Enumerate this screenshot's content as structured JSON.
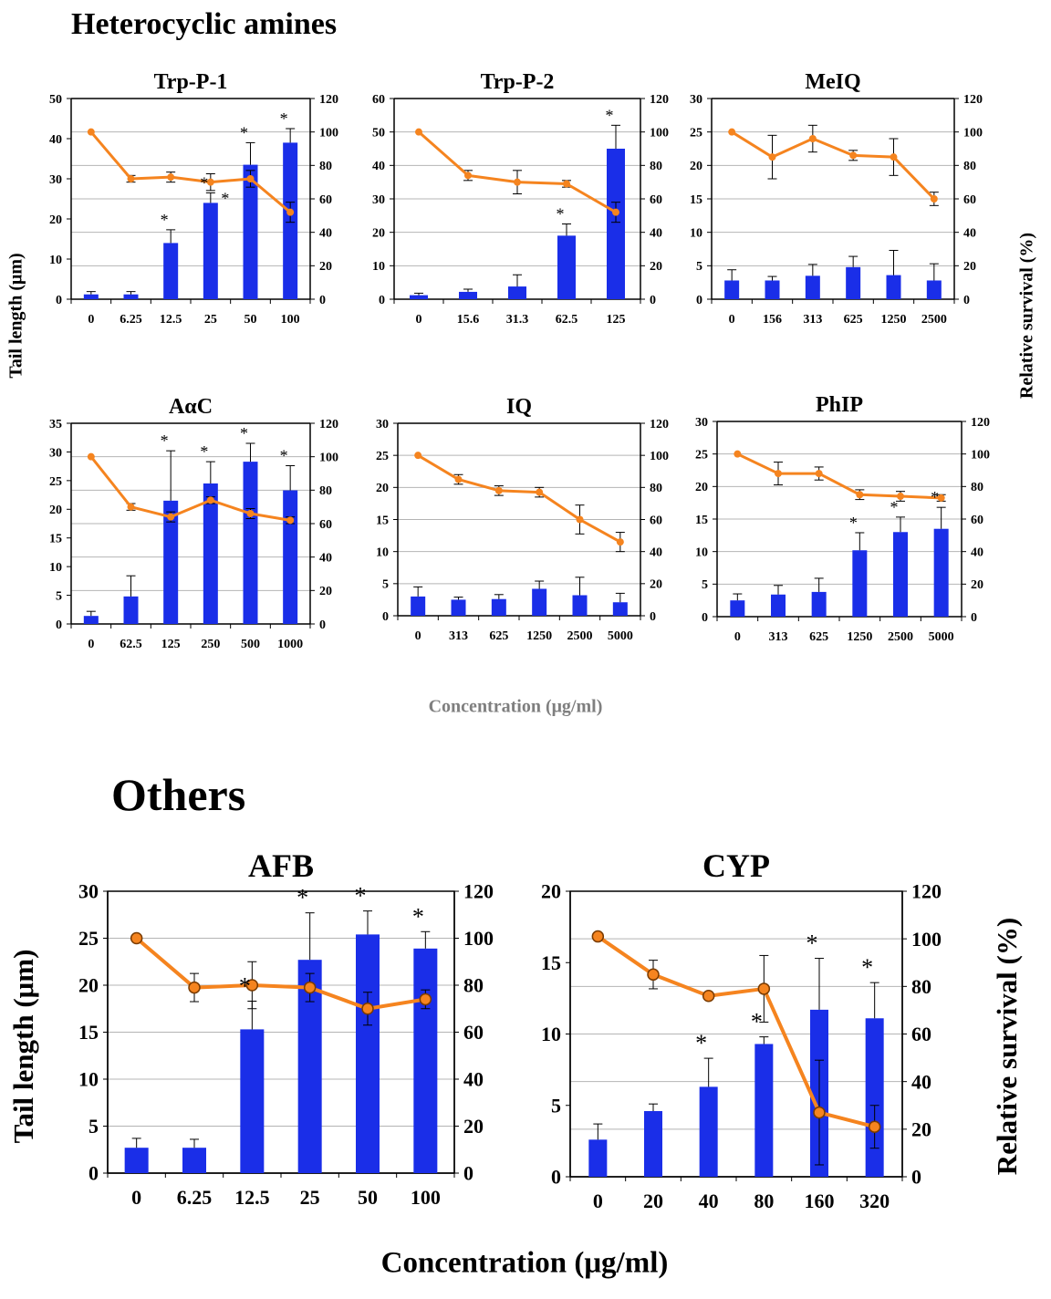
{
  "sections": {
    "heterocyclic": "Heterocyclic amines",
    "others": "Others"
  },
  "axis_labels": {
    "top_ylabel_left": "Tail length (μm)",
    "top_ylabel_right": "Relative survival (%)",
    "top_xlabel": "Concentration (μg/ml)",
    "bottom_ylabel_left": "Tail length (μm)",
    "bottom_ylabel_right": "Relative survival (%)",
    "bottom_xlabel": "Concentration (μg/ml)"
  },
  "colors": {
    "bar": "#1a2ee8",
    "line": "#f5841f",
    "grid": "#b4b4b4",
    "marker_edge_bottom": "#7a3b00"
  },
  "chart_data": [
    {
      "type": "bar+line",
      "title": "Trp-P-1",
      "categories": [
        "0",
        "6.25",
        "12.5",
        "25",
        "50",
        "100"
      ],
      "bars": {
        "name": "Tail length (μm)",
        "values": [
          1.2,
          1.2,
          14,
          24,
          33.5,
          39
        ],
        "errors": [
          0.7,
          0.7,
          3.3,
          2.5,
          5.5,
          3.5
        ],
        "ylim": [
          0,
          50
        ],
        "ticks": [
          0,
          10,
          20,
          30,
          40,
          50
        ]
      },
      "line": {
        "name": "Relative survival (%)",
        "values": [
          100,
          72,
          73,
          70,
          72,
          52
        ],
        "errors": [
          0,
          2,
          3,
          5,
          5,
          6
        ],
        "ylim": [
          0,
          120
        ],
        "ticks": [
          0,
          20,
          40,
          60,
          80,
          100,
          120
        ]
      },
      "significance": [
        "",
        "",
        "*",
        "*",
        "*",
        "*"
      ],
      "significance_line": [
        "",
        "",
        "",
        "*",
        "",
        ""
      ]
    },
    {
      "type": "bar+line",
      "title": "Trp-P-2",
      "categories": [
        "0",
        "15.6",
        "31.3",
        "62.5",
        "125"
      ],
      "bars": {
        "name": "Tail length (μm)",
        "values": [
          1.2,
          2.2,
          3.8,
          19,
          45
        ],
        "errors": [
          0.6,
          0.8,
          3.5,
          3.5,
          7
        ],
        "ylim": [
          0,
          60
        ],
        "ticks": [
          0,
          10,
          20,
          30,
          40,
          50,
          60
        ]
      },
      "line": {
        "name": "Relative survival (%)",
        "values": [
          100,
          74,
          70,
          69,
          52
        ],
        "errors": [
          0,
          3,
          7,
          2,
          6
        ],
        "ylim": [
          0,
          120
        ],
        "ticks": [
          0,
          20,
          40,
          60,
          80,
          100,
          120
        ]
      },
      "significance": [
        "",
        "",
        "",
        "*",
        "*"
      ],
      "significance_line": [
        "",
        "",
        "",
        "",
        ""
      ]
    },
    {
      "type": "bar+line",
      "title": "MeIQ",
      "categories": [
        "0",
        "156",
        "313",
        "625",
        "1250",
        "2500"
      ],
      "bars": {
        "name": "Tail length (μm)",
        "values": [
          2.8,
          2.8,
          3.5,
          4.8,
          3.6,
          2.8
        ],
        "errors": [
          1.6,
          0.6,
          1.7,
          1.6,
          3.7,
          2.5
        ],
        "ylim": [
          0,
          30
        ],
        "ticks": [
          0,
          5,
          10,
          15,
          20,
          25,
          30
        ]
      },
      "line": {
        "name": "Relative survival (%)",
        "values": [
          100,
          85,
          96,
          86,
          85,
          60
        ],
        "errors": [
          0,
          13,
          8,
          3,
          11,
          4
        ],
        "ylim": [
          0,
          120
        ],
        "ticks": [
          0,
          20,
          40,
          60,
          80,
          100,
          120
        ]
      },
      "significance": [
        "",
        "",
        "",
        "",
        "",
        ""
      ],
      "significance_line": [
        "",
        "",
        "",
        "",
        "",
        ""
      ]
    },
    {
      "type": "bar+line",
      "title": "AαC",
      "categories": [
        "0",
        "62.5",
        "125",
        "250",
        "500",
        "1000"
      ],
      "bars": {
        "name": "Tail length (μm)",
        "values": [
          1.4,
          4.8,
          21.5,
          24.5,
          28.3,
          23.3
        ],
        "errors": [
          0.8,
          3.6,
          8.7,
          3.8,
          3.2,
          4.3
        ],
        "ylim": [
          0,
          35
        ],
        "ticks": [
          0,
          5,
          10,
          15,
          20,
          25,
          30,
          35
        ]
      },
      "line": {
        "name": "Relative survival (%)",
        "values": [
          100,
          70,
          64,
          74,
          66,
          62
        ],
        "errors": [
          0,
          2,
          3,
          2,
          3,
          2
        ],
        "ylim": [
          0,
          120
        ],
        "ticks": [
          0,
          20,
          40,
          60,
          80,
          100,
          120
        ]
      },
      "significance": [
        "",
        "",
        "*",
        "*",
        "*",
        "*"
      ],
      "significance_line": [
        "",
        "",
        "",
        "",
        "",
        ""
      ]
    },
    {
      "type": "bar+line",
      "title": "IQ",
      "categories": [
        "0",
        "313",
        "625",
        "1250",
        "2500",
        "5000"
      ],
      "bars": {
        "name": "Tail length (μm)",
        "values": [
          3,
          2.5,
          2.6,
          4.2,
          3.2,
          2.1
        ],
        "errors": [
          1.5,
          0.4,
          0.7,
          1.2,
          2.8,
          1.4
        ],
        "ylim": [
          0,
          30
        ],
        "ticks": [
          0,
          5,
          10,
          15,
          20,
          25,
          30
        ]
      },
      "line": {
        "name": "Relative survival (%)",
        "values": [
          100,
          85,
          78,
          77,
          60,
          46
        ],
        "errors": [
          0,
          3,
          3,
          3,
          9,
          6
        ],
        "ylim": [
          0,
          120
        ],
        "ticks": [
          0,
          20,
          40,
          60,
          80,
          100,
          120
        ]
      },
      "significance": [
        "",
        "",
        "",
        "",
        "",
        ""
      ],
      "significance_line": [
        "",
        "",
        "",
        "",
        "",
        ""
      ]
    },
    {
      "type": "bar+line",
      "title": "PhIP",
      "categories": [
        "0",
        "313",
        "625",
        "1250",
        "2500",
        "5000"
      ],
      "bars": {
        "name": "Tail length (μm)",
        "values": [
          2.5,
          3.4,
          3.8,
          10.2,
          13,
          13.5
        ],
        "errors": [
          1,
          1.4,
          2.1,
          2.7,
          2.3,
          3.3
        ],
        "ylim": [
          0,
          30
        ],
        "ticks": [
          0,
          5,
          10,
          15,
          20,
          25,
          30
        ]
      },
      "line": {
        "name": "Relative survival (%)",
        "values": [
          100,
          88,
          88,
          75,
          74,
          73
        ],
        "errors": [
          0,
          7,
          4,
          3,
          3,
          2
        ],
        "ylim": [
          0,
          120
        ],
        "ticks": [
          0,
          20,
          40,
          60,
          80,
          100,
          120
        ]
      },
      "significance": [
        "",
        "",
        "",
        "*",
        "*",
        "*"
      ],
      "significance_line": [
        "",
        "",
        "",
        "",
        "",
        ""
      ]
    },
    {
      "type": "bar+line",
      "title": "AFB",
      "categories": [
        "0",
        "6.25",
        "12.5",
        "25",
        "50",
        "100"
      ],
      "bars": {
        "name": "Tail length (μm)",
        "values": [
          2.7,
          2.7,
          15.3,
          22.7,
          25.4,
          23.9
        ],
        "errors": [
          1,
          0.9,
          3,
          5,
          2.5,
          1.8
        ],
        "ylim": [
          0,
          30
        ],
        "ticks": [
          0,
          5,
          10,
          15,
          20,
          25,
          30
        ]
      },
      "line": {
        "name": "Relative survival (%)",
        "values": [
          100,
          79,
          80,
          79,
          70,
          74
        ],
        "errors": [
          0,
          6,
          10,
          6,
          7,
          4
        ],
        "ylim": [
          0,
          120
        ],
        "ticks": [
          0,
          20,
          40,
          60,
          80,
          100,
          120
        ]
      },
      "significance": [
        "",
        "",
        "*",
        "*",
        "*",
        "*"
      ],
      "significance_line": [
        "",
        "",
        "",
        "",
        "",
        ""
      ]
    },
    {
      "type": "bar+line",
      "title": "CYP",
      "categories": [
        "0",
        "20",
        "40",
        "80",
        "160",
        "320"
      ],
      "bars": {
        "name": "Tail length (μm)",
        "values": [
          2.6,
          4.6,
          6.3,
          9.3,
          11.7,
          11.1
        ],
        "errors": [
          1.1,
          0.5,
          2,
          0.5,
          3.6,
          2.5
        ],
        "ylim": [
          0,
          20
        ],
        "ticks": [
          0,
          5,
          10,
          15,
          20
        ]
      },
      "line": {
        "name": "Relative survival (%)",
        "values": [
          101,
          85,
          76,
          79,
          27,
          21
        ],
        "errors": [
          0,
          6,
          0,
          14,
          22,
          9
        ],
        "ylim": [
          0,
          120
        ],
        "ticks": [
          0,
          20,
          40,
          60,
          80,
          100,
          120
        ]
      },
      "significance": [
        "",
        "",
        "*",
        "*",
        "*",
        "*"
      ],
      "significance_line": [
        "",
        "",
        "",
        "",
        "",
        ""
      ]
    }
  ]
}
